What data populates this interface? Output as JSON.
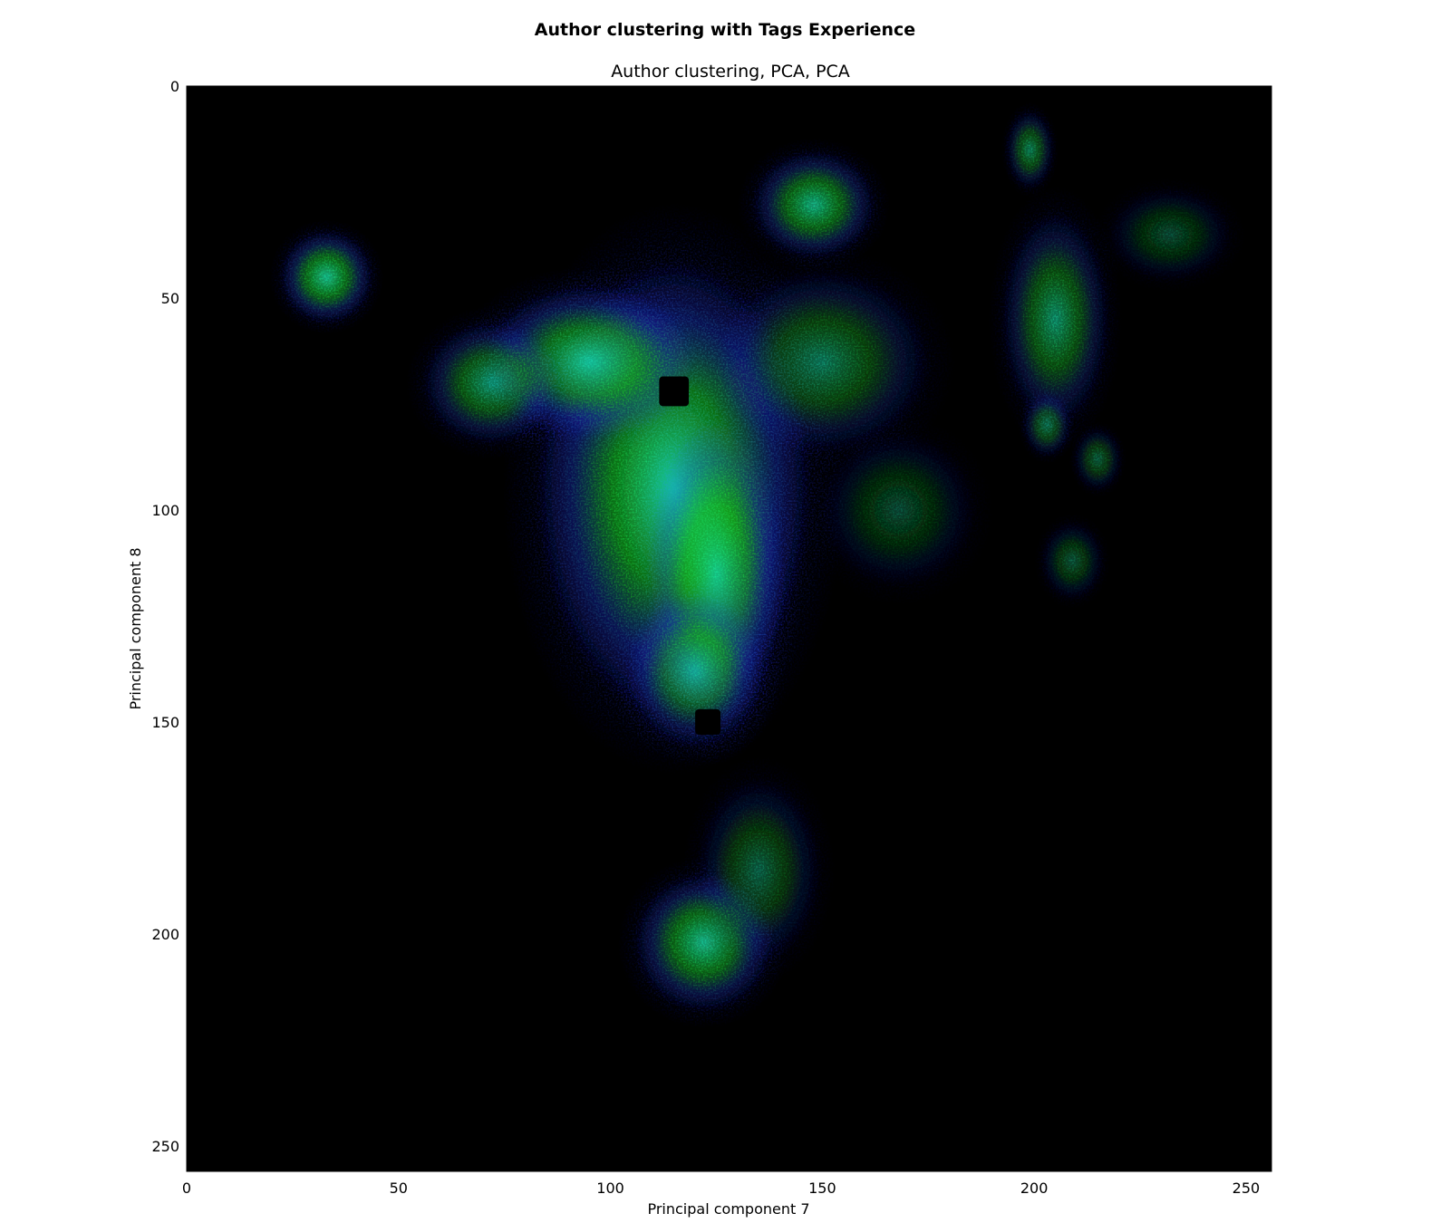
{
  "chart_data": {
    "type": "heatmap",
    "suptitle": "Author clustering with Tags Experience",
    "title": "Author clustering, PCA, PCA",
    "xlabel": "Principal component 7",
    "ylabel": "Principal component 8",
    "xlim": [
      0,
      256
    ],
    "ylim": [
      256,
      0
    ],
    "y_axis_inverted": true,
    "x_ticks": [
      0,
      50,
      100,
      150,
      200,
      250
    ],
    "y_ticks": [
      0,
      50,
      100,
      150,
      200,
      250
    ],
    "background_color": "#000000",
    "channels": [
      "green",
      "blue"
    ],
    "colors": {
      "green": "#19c81e",
      "blue": "#1e28e6",
      "cyan": "#19e6b4"
    },
    "clusters": [
      {
        "x": 115,
        "y": 95,
        "sx": 18,
        "sy": 30,
        "intensity": 1.0
      },
      {
        "x": 95,
        "y": 65,
        "sx": 14,
        "sy": 10,
        "intensity": 0.9
      },
      {
        "x": 125,
        "y": 115,
        "sx": 9,
        "sy": 20,
        "intensity": 0.8
      },
      {
        "x": 120,
        "y": 138,
        "sx": 9,
        "sy": 10,
        "intensity": 0.75
      },
      {
        "x": 33,
        "y": 45,
        "sx": 6,
        "sy": 6,
        "intensity": 0.85
      },
      {
        "x": 72,
        "y": 70,
        "sx": 9,
        "sy": 8,
        "intensity": 0.65
      },
      {
        "x": 148,
        "y": 28,
        "sx": 8,
        "sy": 7,
        "intensity": 0.75
      },
      {
        "x": 205,
        "y": 55,
        "sx": 7,
        "sy": 14,
        "intensity": 0.6
      },
      {
        "x": 199,
        "y": 15,
        "sx": 3,
        "sy": 5,
        "intensity": 0.55
      },
      {
        "x": 122,
        "y": 202,
        "sx": 9,
        "sy": 9,
        "intensity": 0.8
      },
      {
        "x": 150,
        "y": 65,
        "sx": 14,
        "sy": 12,
        "intensity": 0.5
      },
      {
        "x": 203,
        "y": 80,
        "sx": 3,
        "sy": 4,
        "intensity": 0.5
      },
      {
        "x": 215,
        "y": 88,
        "sx": 3,
        "sy": 4,
        "intensity": 0.4
      },
      {
        "x": 209,
        "y": 112,
        "sx": 4,
        "sy": 5,
        "intensity": 0.35
      },
      {
        "x": 232,
        "y": 35,
        "sx": 8,
        "sy": 6,
        "intensity": 0.3
      },
      {
        "x": 135,
        "y": 185,
        "sx": 8,
        "sy": 12,
        "intensity": 0.4
      },
      {
        "x": 168,
        "y": 100,
        "sx": 10,
        "sy": 10,
        "intensity": 0.3
      }
    ],
    "voids": [
      {
        "x": 115,
        "y": 72,
        "r": 3.5
      },
      {
        "x": 123,
        "y": 150,
        "r": 3.0
      }
    ]
  }
}
